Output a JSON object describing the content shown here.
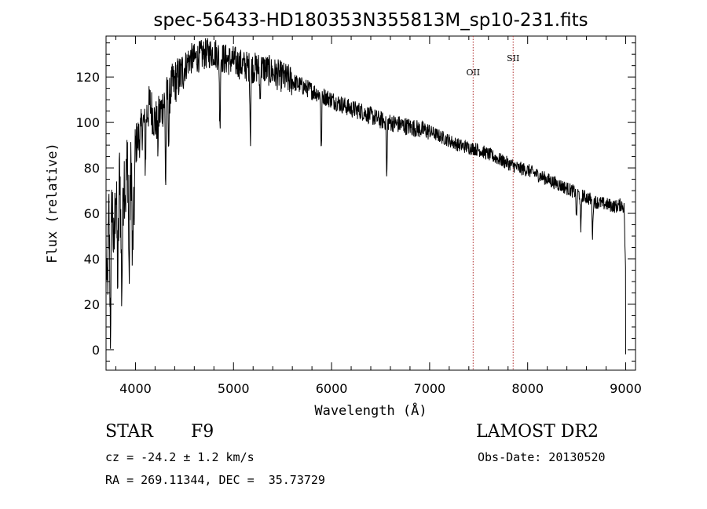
{
  "chart_data": {
    "type": "line",
    "title": "spec-56433-HD180353N355813M_sp10-231.fits",
    "xlabel": "Wavelength (Å)",
    "ylabel": "Flux (relative)",
    "xlim": [
      3700,
      9100
    ],
    "ylim": [
      -9,
      138
    ],
    "x_ticks": [
      4000,
      5000,
      6000,
      7000,
      8000,
      9000
    ],
    "y_ticks": [
      0,
      20,
      40,
      60,
      80,
      100,
      120
    ],
    "grid": false,
    "series_color": "#000000",
    "anchors": {
      "x": [
        3700,
        3710,
        3730,
        3745,
        3760,
        3780,
        3800,
        3820,
        3840,
        3860,
        3880,
        3900,
        3920,
        3940,
        3960,
        3980,
        4000,
        4050,
        4100,
        4150,
        4200,
        4250,
        4300,
        4350,
        4400,
        4450,
        4500,
        4550,
        4600,
        4700,
        4800,
        4900,
        5000,
        5100,
        5200,
        5300,
        5400,
        5500,
        5600,
        5700,
        5800,
        5900,
        6000,
        6100,
        6200,
        6300,
        6400,
        6500,
        6600,
        6700,
        6800,
        6900,
        7000,
        7100,
        7200,
        7300,
        7400,
        7500,
        7600,
        7700,
        7800,
        7900,
        8000,
        8100,
        8200,
        8300,
        8400,
        8500,
        8600,
        8700,
        8800,
        8900,
        8960,
        8985,
        9000
      ],
      "y": [
        45,
        20,
        60,
        10,
        70,
        40,
        75,
        30,
        85,
        25,
        80,
        70,
        85,
        60,
        88,
        50,
        90,
        95,
        102,
        108,
        100,
        104,
        110,
        114,
        118,
        120,
        124,
        128,
        128,
        130,
        131,
        128,
        127,
        125,
        124,
        124,
        122,
        120,
        118,
        116,
        114,
        112,
        110,
        108,
        106,
        105,
        103,
        101,
        100,
        99,
        98,
        97,
        96,
        94,
        92,
        90,
        89,
        88,
        86,
        84,
        82,
        80,
        79,
        77,
        75,
        73,
        71,
        69,
        67,
        65,
        64,
        63,
        64,
        62,
        30
      ]
    },
    "absorption_lines": [
      {
        "x": 3934,
        "depth": 35
      },
      {
        "x": 3968,
        "depth": 35
      },
      {
        "x": 4101,
        "depth": 20
      },
      {
        "x": 4227,
        "depth": 12
      },
      {
        "x": 4308,
        "depth": 38
      },
      {
        "x": 4340,
        "depth": 22
      },
      {
        "x": 4861,
        "depth": 32
      },
      {
        "x": 5172,
        "depth": 30
      },
      {
        "x": 5270,
        "depth": 14
      },
      {
        "x": 5895,
        "depth": 26
      },
      {
        "x": 6563,
        "depth": 25
      },
      {
        "x": 8498,
        "depth": 12
      },
      {
        "x": 8542,
        "depth": 18
      },
      {
        "x": 8662,
        "depth": 16
      }
    ],
    "lines": [
      {
        "name": "OII",
        "x": 7444,
        "color": "#b03030"
      },
      {
        "name": "SII",
        "x": 7852,
        "color": "#b03030"
      }
    ]
  },
  "info": {
    "object_class": "STAR",
    "subclass": "F9",
    "survey": "LAMOST DR2",
    "cz": "cz = -24.2 ± 1.2 km/s",
    "obs_date": "Obs-Date: 20130520",
    "coords": "RA = 269.11344, DEC =  35.73729"
  }
}
